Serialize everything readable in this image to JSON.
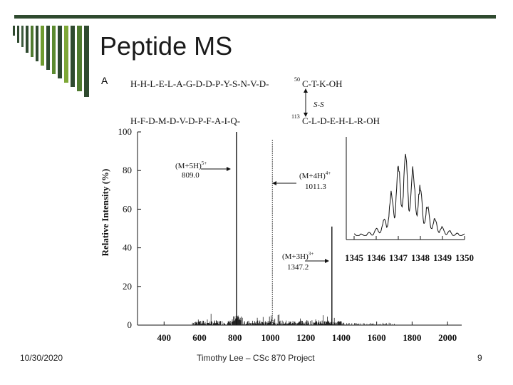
{
  "slide": {
    "title": "Peptide MS",
    "panel_label": "A",
    "footer_date": "10/30/2020",
    "footer_center": "Timothy Lee – CSc 870 Project",
    "page_number": "9",
    "accent_color": "#2f4a2f"
  },
  "sequence": {
    "chain1": "H-H-L-E-L-A-G-D-D-P-Y-S-N-V-D-",
    "chain1_sup": "50",
    "chain1_tail": "C-T-K-OH",
    "bond": "S-S",
    "chain2": "H-F-D-M-D-V-D-P-F-A-I-Q-",
    "chain2_sup": "113",
    "chain2_tail": "C-L-D-E-H-L-R-OH"
  },
  "chart_data": [
    {
      "type": "line",
      "ylabel": "Relative Intensity (%)",
      "xlabel": "",
      "xlim": [
        250,
        2080
      ],
      "ylim": [
        0,
        100
      ],
      "xticks": [
        "400",
        "600",
        "800",
        "1000",
        "1200",
        "1400",
        "1600",
        "1800",
        "2000"
      ],
      "yticks": [
        "0",
        "20",
        "40",
        "60",
        "80",
        "100"
      ],
      "peaks": [
        {
          "x": 809.0,
          "y": 100
        },
        {
          "x": 1011.3,
          "y": 96
        },
        {
          "x": 1347.2,
          "y": 51
        }
      ],
      "annotations": [
        {
          "text": "(M+5H)",
          "sup": "5+",
          "value": "809.0"
        },
        {
          "text": "(M+4H)",
          "sup": "4+",
          "value": "1011.3"
        },
        {
          "text": "(M+3H)",
          "sup": "3+",
          "value": "1347.2"
        }
      ]
    },
    {
      "type": "line",
      "title": "",
      "xlim": [
        1345,
        1350
      ],
      "xticks": [
        "1345",
        "1346",
        "1347",
        "1348",
        "1349",
        "1350"
      ],
      "envelope": [
        {
          "x": 1345.0,
          "y": 4
        },
        {
          "x": 1345.4,
          "y": 4
        },
        {
          "x": 1345.7,
          "y": 6
        },
        {
          "x": 1346.0,
          "y": 10
        },
        {
          "x": 1346.3,
          "y": 18
        },
        {
          "x": 1346.5,
          "y": 35
        },
        {
          "x": 1346.7,
          "y": 55
        },
        {
          "x": 1346.9,
          "y": 78
        },
        {
          "x": 1347.1,
          "y": 92
        },
        {
          "x": 1347.2,
          "y": 100
        },
        {
          "x": 1347.4,
          "y": 95
        },
        {
          "x": 1347.6,
          "y": 85
        },
        {
          "x": 1347.8,
          "y": 75
        },
        {
          "x": 1348.0,
          "y": 60
        },
        {
          "x": 1348.2,
          "y": 45
        },
        {
          "x": 1348.4,
          "y": 33
        },
        {
          "x": 1348.6,
          "y": 24
        },
        {
          "x": 1348.8,
          "y": 18
        },
        {
          "x": 1349.0,
          "y": 12
        },
        {
          "x": 1349.3,
          "y": 8
        },
        {
          "x": 1349.6,
          "y": 5
        },
        {
          "x": 1350.0,
          "y": 4
        }
      ]
    }
  ]
}
